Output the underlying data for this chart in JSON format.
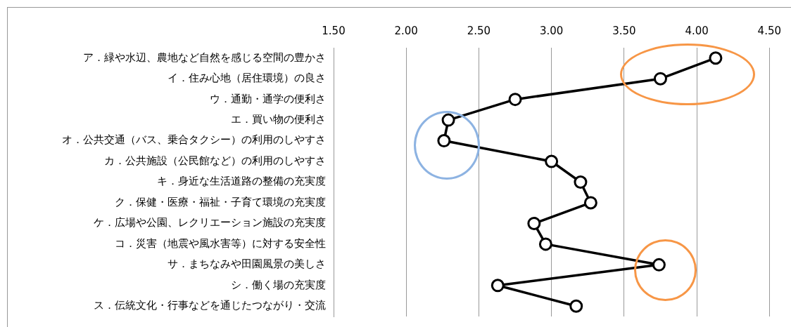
{
  "chart_data": {
    "type": "line",
    "orientation": "horizontal",
    "categories": [
      "ア．緑や水辺、農地など自然を感じる空間の豊かさ",
      "イ．住み心地（居住環境）の良さ",
      "ウ．通勤・通学の便利さ",
      "エ．買い物の便利さ",
      "オ．公共交通（バス、乗合タクシー）の利用のしやすさ",
      "カ．公共施設（公民館など）の利用のしやすさ",
      "キ．身近な生活道路の整備の充実度",
      "ク．保健・医療・福祉・子育て環境の充実度",
      "ケ．広場や公園、レクリエーション施設の充実度",
      "コ．災害（地震や風水害等）に対する安全性",
      "サ．まちなみや田園風景の美しさ",
      "シ．働く場の充実度",
      "ス．伝統文化・行事などを通じたつながり・交流"
    ],
    "values": [
      4.13,
      3.75,
      2.75,
      2.29,
      2.26,
      3.0,
      3.2,
      3.27,
      2.88,
      2.96,
      3.74,
      2.63,
      3.17
    ],
    "color": "#000000",
    "xlim": [
      1.5,
      4.5
    ],
    "xticks": [
      {
        "value": 1.5,
        "label": "1.50"
      },
      {
        "value": 2,
        "label": "2.00"
      },
      {
        "value": 2.5,
        "label": "2.50"
      },
      {
        "value": 3,
        "label": "3.00"
      },
      {
        "value": 3.5,
        "label": "3.50"
      },
      {
        "value": 4,
        "label": "4.00"
      },
      {
        "value": 4.5,
        "label": "4.50"
      }
    ],
    "grid": "x",
    "marker": "circle",
    "legend": false
  }
}
